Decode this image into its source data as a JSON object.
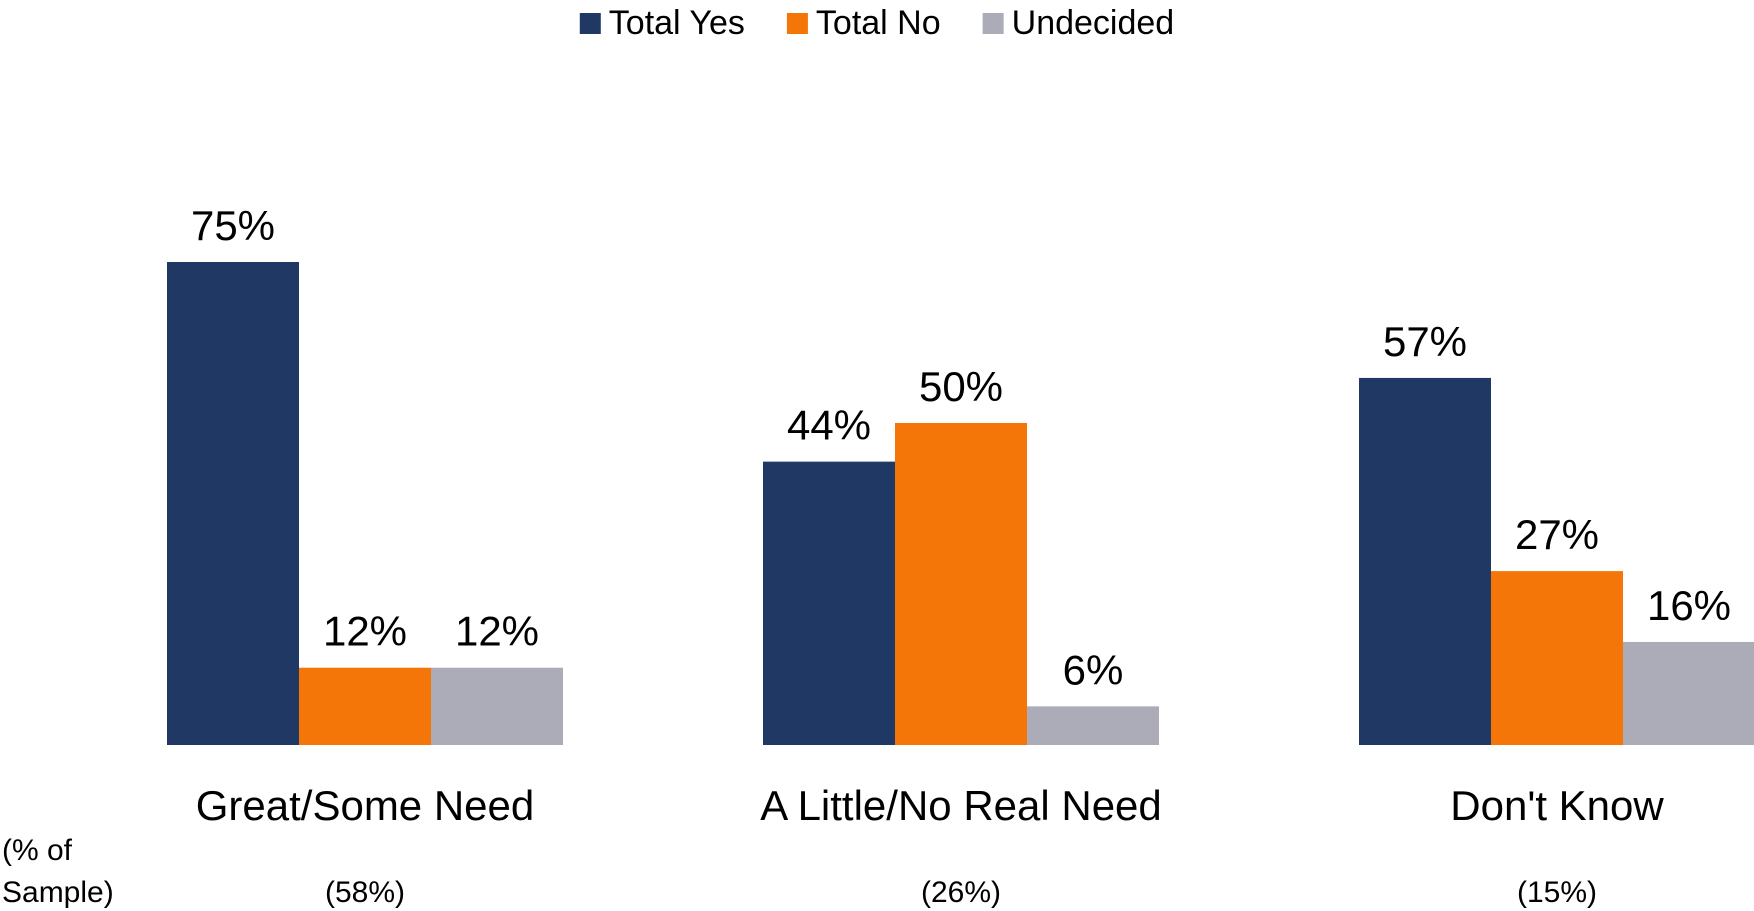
{
  "chart_data": {
    "type": "bar",
    "categories": [
      "Great/Some Need",
      "A Little/No Real Need",
      "Don't Know"
    ],
    "category_samples": [
      "(58%)",
      "(26%)",
      "(15%)"
    ],
    "sample_note_lines": [
      "(% of",
      "Sample)"
    ],
    "series": [
      {
        "name": "Total Yes",
        "color": "#1f3864",
        "values": [
          75,
          44,
          57
        ],
        "labels": [
          "75%",
          "44%",
          "57%"
        ]
      },
      {
        "name": "Total No",
        "color": "#f57608",
        "values": [
          12,
          50,
          27
        ],
        "labels": [
          "12%",
          "50%",
          "27%"
        ]
      },
      {
        "name": "Undecided",
        "color": "#abacb8",
        "values": [
          12,
          6,
          16
        ],
        "labels": [
          "12%",
          "6%",
          "16%"
        ]
      }
    ],
    "ylim": [
      0,
      75
    ],
    "grid": false,
    "legend": "top-center",
    "title": "",
    "xlabel": "",
    "ylabel": ""
  }
}
